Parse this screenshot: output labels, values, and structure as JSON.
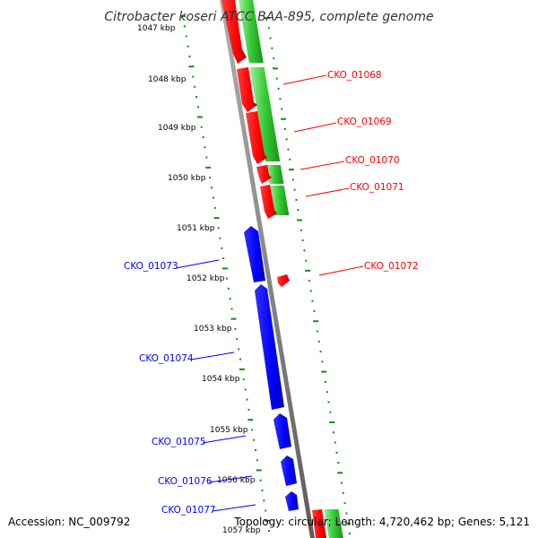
{
  "title": "Citrobacter koseri ATCC BAA-895, complete genome",
  "accession": "Accession: NC_009792",
  "summary": "Topology: circular; Length: 4,720,462 bp; Genes: 5,121",
  "colors": {
    "forward_gene": "#ff0000",
    "reverse_gene": "#0000ff",
    "cds_track": "#33cc33",
    "backbone": "#888888",
    "ticks": "#1a8a1a"
  },
  "kbp_labels": [
    "1047 kbp",
    "1048 kbp",
    "1049 kbp",
    "1050 kbp",
    "1051 kbp",
    "1052 kbp",
    "1053 kbp",
    "1054 kbp",
    "1055 kbp",
    "1056 kbp",
    "1057 kbp"
  ],
  "forward_genes": [
    "CKO_01068",
    "CKO_01069",
    "CKO_01070",
    "CKO_01071",
    "CKO_01072"
  ],
  "reverse_genes": [
    "CKO_01073",
    "CKO_01074",
    "CKO_01075",
    "CKO_01076",
    "CKO_01077"
  ]
}
